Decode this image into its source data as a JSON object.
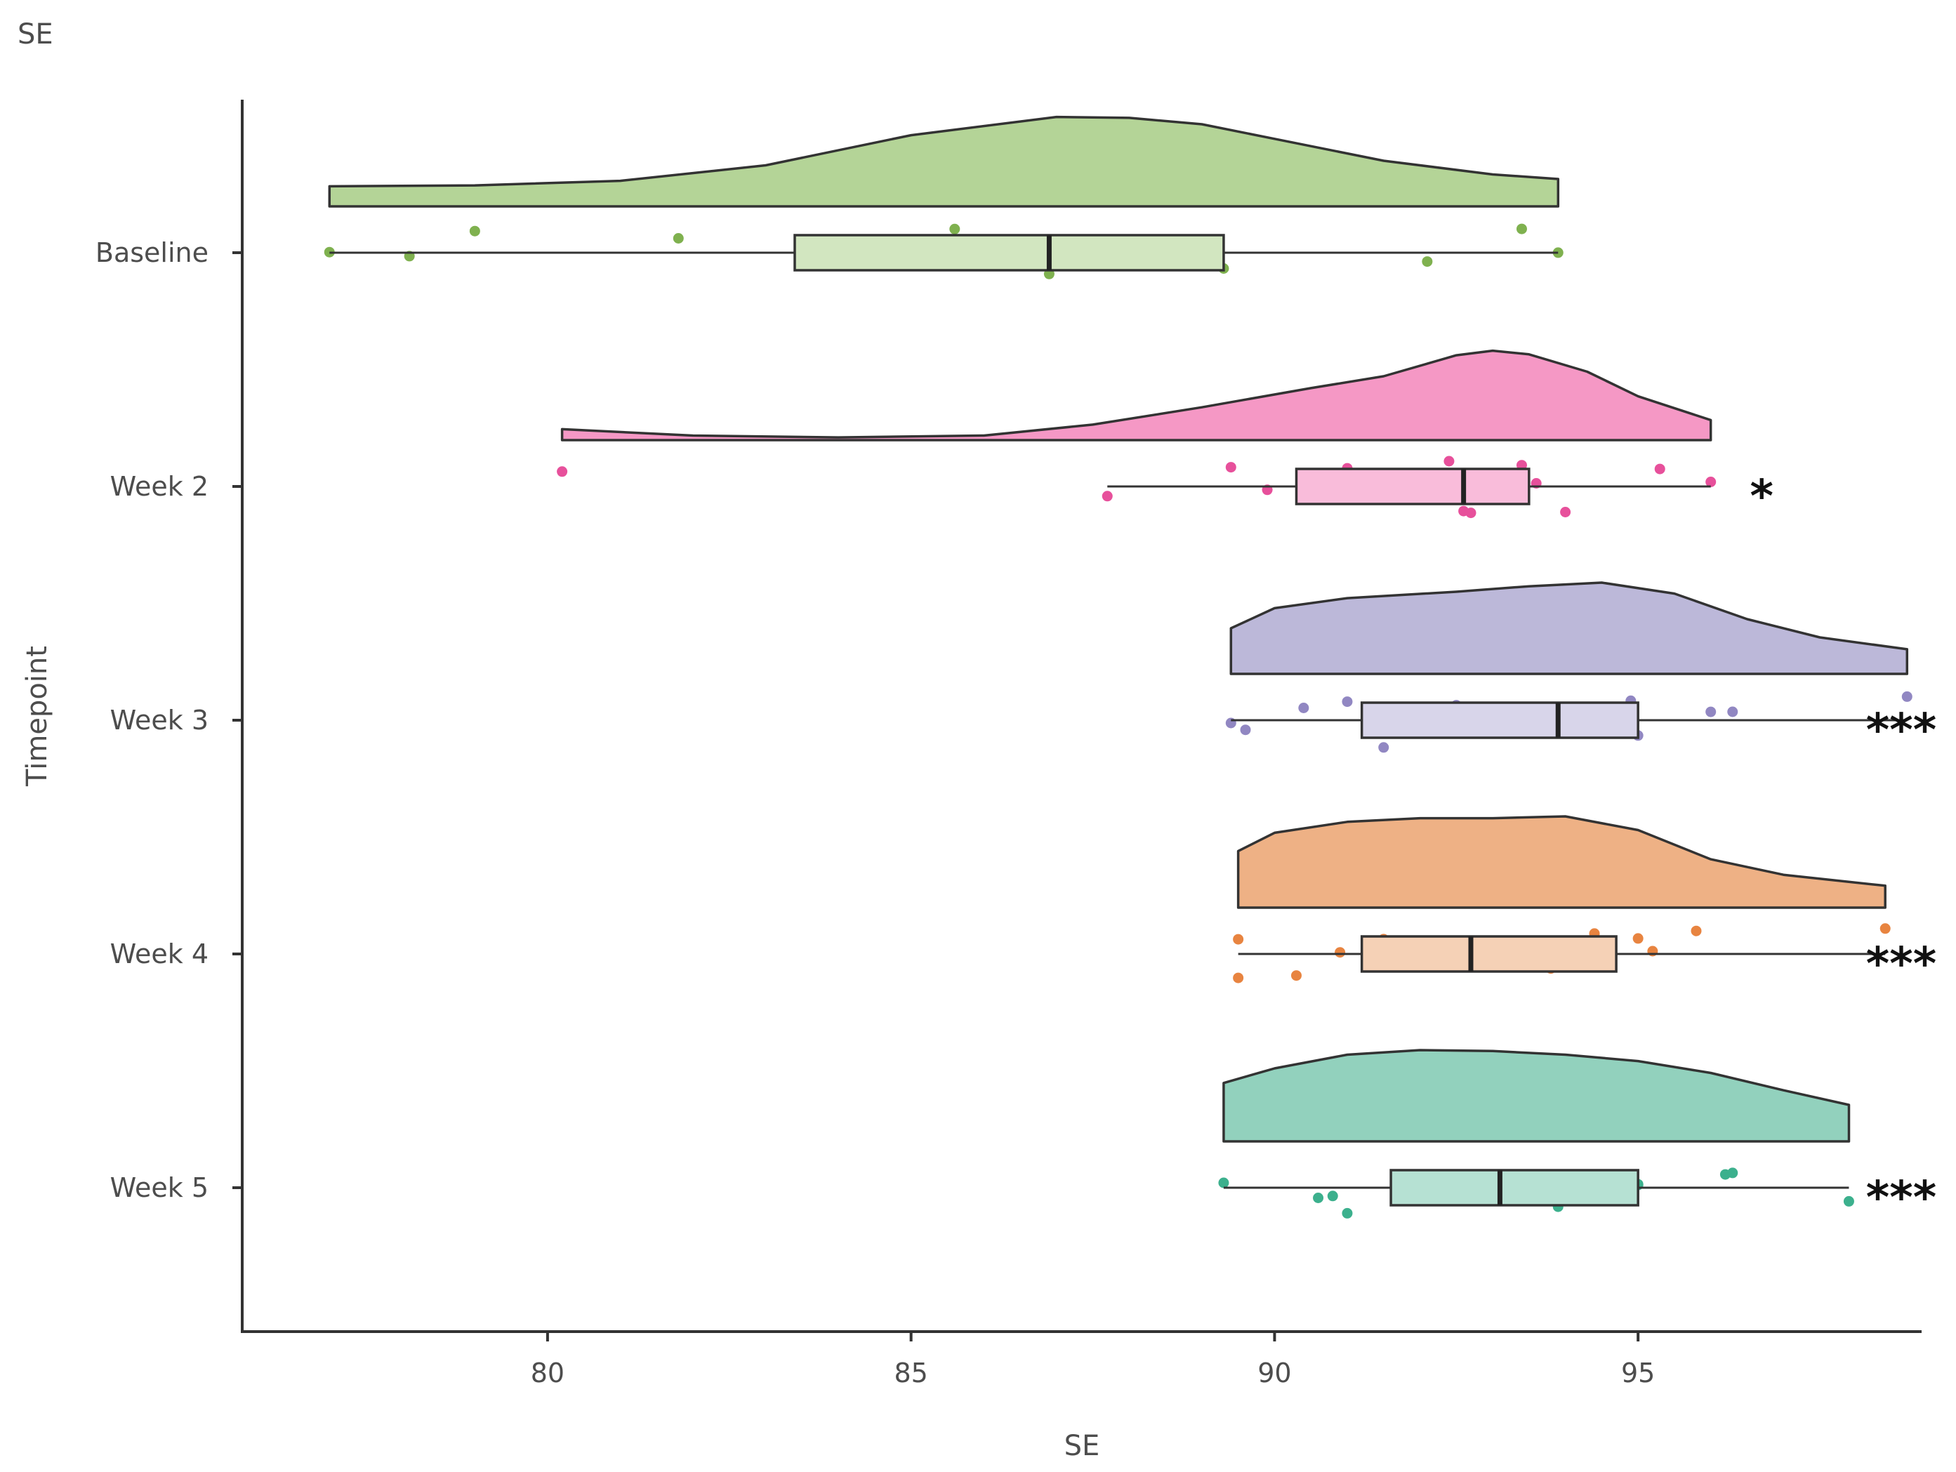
{
  "chart_data": {
    "type": "raincloud",
    "title": "SE",
    "xlabel": "SE",
    "ylabel": "Timepoint",
    "xlim": [
      75.8,
      98.9
    ],
    "xticks": [
      80,
      85,
      90,
      95
    ],
    "grid": false,
    "legend": "none",
    "groups": [
      {
        "name": "Baseline",
        "color": "#7fb14f",
        "fill": "#b4d497",
        "box_fill": "#d2e6c0",
        "significance": "",
        "box": {
          "min": 77.0,
          "q1": 83.4,
          "median": 86.9,
          "q3": 89.3,
          "max": 93.9
        },
        "points": [
          77.0,
          78.1,
          79.0,
          81.8,
          84.9,
          85.4,
          85.6,
          86.9,
          87.8,
          88.2,
          89.2,
          89.3,
          92.1,
          93.4,
          93.9
        ],
        "density": [
          [
            77.0,
            0.22
          ],
          [
            79.0,
            0.23
          ],
          [
            81.0,
            0.28
          ],
          [
            83.0,
            0.45
          ],
          [
            85.0,
            0.78
          ],
          [
            87.0,
            0.98
          ],
          [
            88.0,
            0.97
          ],
          [
            89.0,
            0.9
          ],
          [
            90.0,
            0.74
          ],
          [
            91.5,
            0.5
          ],
          [
            93.0,
            0.35
          ],
          [
            93.9,
            0.3
          ]
        ]
      },
      {
        "name": "Week 2",
        "color": "#e7509b",
        "fill": "#f598c5",
        "box_fill": "#f9bcda",
        "significance": "*",
        "box": {
          "min": 87.7,
          "q1": 90.3,
          "median": 92.6,
          "q3": 93.5,
          "max": 96.0
        },
        "points": [
          80.2,
          87.7,
          89.4,
          89.9,
          90.7,
          91.0,
          92.4,
          92.6,
          92.7,
          93.4,
          93.6,
          94.0,
          95.3,
          96.0
        ],
        "density": [
          [
            80.2,
            0.12
          ],
          [
            82.0,
            0.05
          ],
          [
            84.0,
            0.03
          ],
          [
            86.0,
            0.05
          ],
          [
            87.5,
            0.17
          ],
          [
            89.0,
            0.36
          ],
          [
            90.5,
            0.57
          ],
          [
            91.5,
            0.7
          ],
          [
            92.5,
            0.93
          ],
          [
            93.0,
            0.98
          ],
          [
            93.5,
            0.94
          ],
          [
            94.3,
            0.75
          ],
          [
            95.0,
            0.48
          ],
          [
            96.0,
            0.22
          ]
        ]
      },
      {
        "name": "Week 3",
        "color": "#9187c2",
        "fill": "#bcb8d9",
        "box_fill": "#d8d5ea",
        "significance": "***",
        "box": {
          "min": 89.4,
          "q1": 91.2,
          "median": 93.9,
          "q3": 95.0,
          "max": 98.7
        },
        "points": [
          89.4,
          89.6,
          90.4,
          91.0,
          91.5,
          92.3,
          92.5,
          94.0,
          94.7,
          94.9,
          95.0,
          96.0,
          96.3,
          98.7
        ],
        "density": [
          [
            89.4,
            0.5
          ],
          [
            90.0,
            0.72
          ],
          [
            91.0,
            0.83
          ],
          [
            92.5,
            0.9
          ],
          [
            93.5,
            0.96
          ],
          [
            94.5,
            1.0
          ],
          [
            95.5,
            0.88
          ],
          [
            96.5,
            0.6
          ],
          [
            97.5,
            0.4
          ],
          [
            98.7,
            0.27
          ]
        ]
      },
      {
        "name": "Week 4",
        "color": "#e88440",
        "fill": "#eeb185",
        "box_fill": "#f5d1b6",
        "significance": "***",
        "box": {
          "min": 89.5,
          "q1": 91.2,
          "median": 92.7,
          "q3": 94.7,
          "max": 98.4
        },
        "points": [
          89.5,
          89.5,
          90.3,
          90.9,
          91.5,
          91.6,
          92.4,
          93.8,
          93.9,
          94.4,
          95.0,
          95.2,
          95.8,
          98.4
        ],
        "density": [
          [
            89.5,
            0.62
          ],
          [
            90.0,
            0.82
          ],
          [
            91.0,
            0.94
          ],
          [
            92.0,
            0.98
          ],
          [
            93.0,
            0.98
          ],
          [
            94.0,
            1.0
          ],
          [
            95.0,
            0.85
          ],
          [
            96.0,
            0.53
          ],
          [
            97.0,
            0.36
          ],
          [
            98.4,
            0.24
          ]
        ]
      },
      {
        "name": "Week 5",
        "color": "#3cb08d",
        "fill": "#92d1bd",
        "box_fill": "#b6e1d3",
        "significance": "***",
        "box": {
          "min": 89.3,
          "q1": 91.6,
          "median": 93.1,
          "q3": 95.0,
          "max": 97.9
        },
        "points": [
          89.3,
          90.6,
          90.8,
          91.0,
          92.1,
          92.2,
          92.6,
          93.7,
          93.9,
          95.0,
          95.0,
          96.2,
          96.3,
          97.9
        ],
        "density": [
          [
            89.3,
            0.64
          ],
          [
            90.0,
            0.8
          ],
          [
            91.0,
            0.95
          ],
          [
            92.0,
            1.0
          ],
          [
            93.0,
            0.99
          ],
          [
            94.0,
            0.95
          ],
          [
            95.0,
            0.88
          ],
          [
            96.0,
            0.75
          ],
          [
            97.0,
            0.56
          ],
          [
            97.9,
            0.4
          ]
        ]
      }
    ]
  }
}
